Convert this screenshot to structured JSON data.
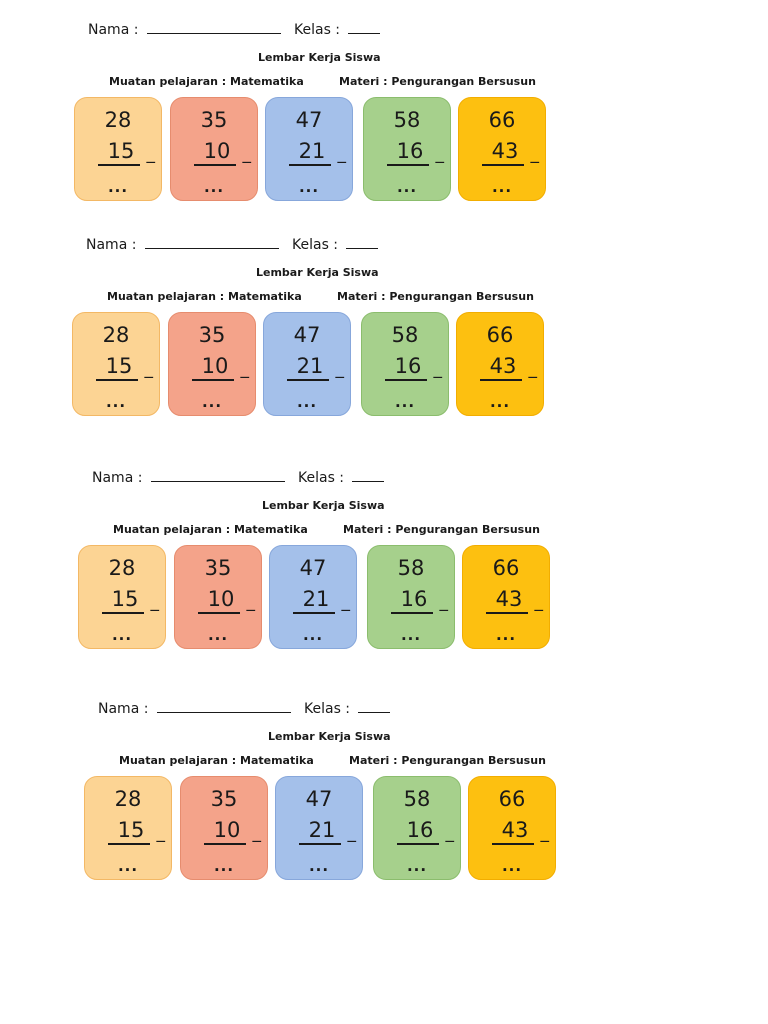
{
  "worksheet": {
    "name_label": "Nama :",
    "class_label": "Kelas :",
    "title": "Lembar Kerja Siswa",
    "subject": "Muatan pelajaran : Matematika",
    "topic": "Materi : Pengurangan Bersusun"
  },
  "problems": [
    {
      "top": "28",
      "bottom": "15",
      "operator": "_",
      "answer": "...",
      "color": "#fcd494"
    },
    {
      "top": "35",
      "bottom": "10",
      "operator": "_",
      "answer": "...",
      "color": "#f4a38a"
    },
    {
      "top": "47",
      "bottom": "21",
      "operator": "_",
      "answer": "...",
      "color": "#a4c0ea"
    },
    {
      "top": "58",
      "bottom": "16",
      "operator": "_",
      "answer": "...",
      "color": "#a6d08c"
    },
    {
      "top": "66",
      "bottom": "43",
      "operator": "_",
      "answer": "...",
      "color": "#fdc010"
    }
  ],
  "sheet_count": 4
}
